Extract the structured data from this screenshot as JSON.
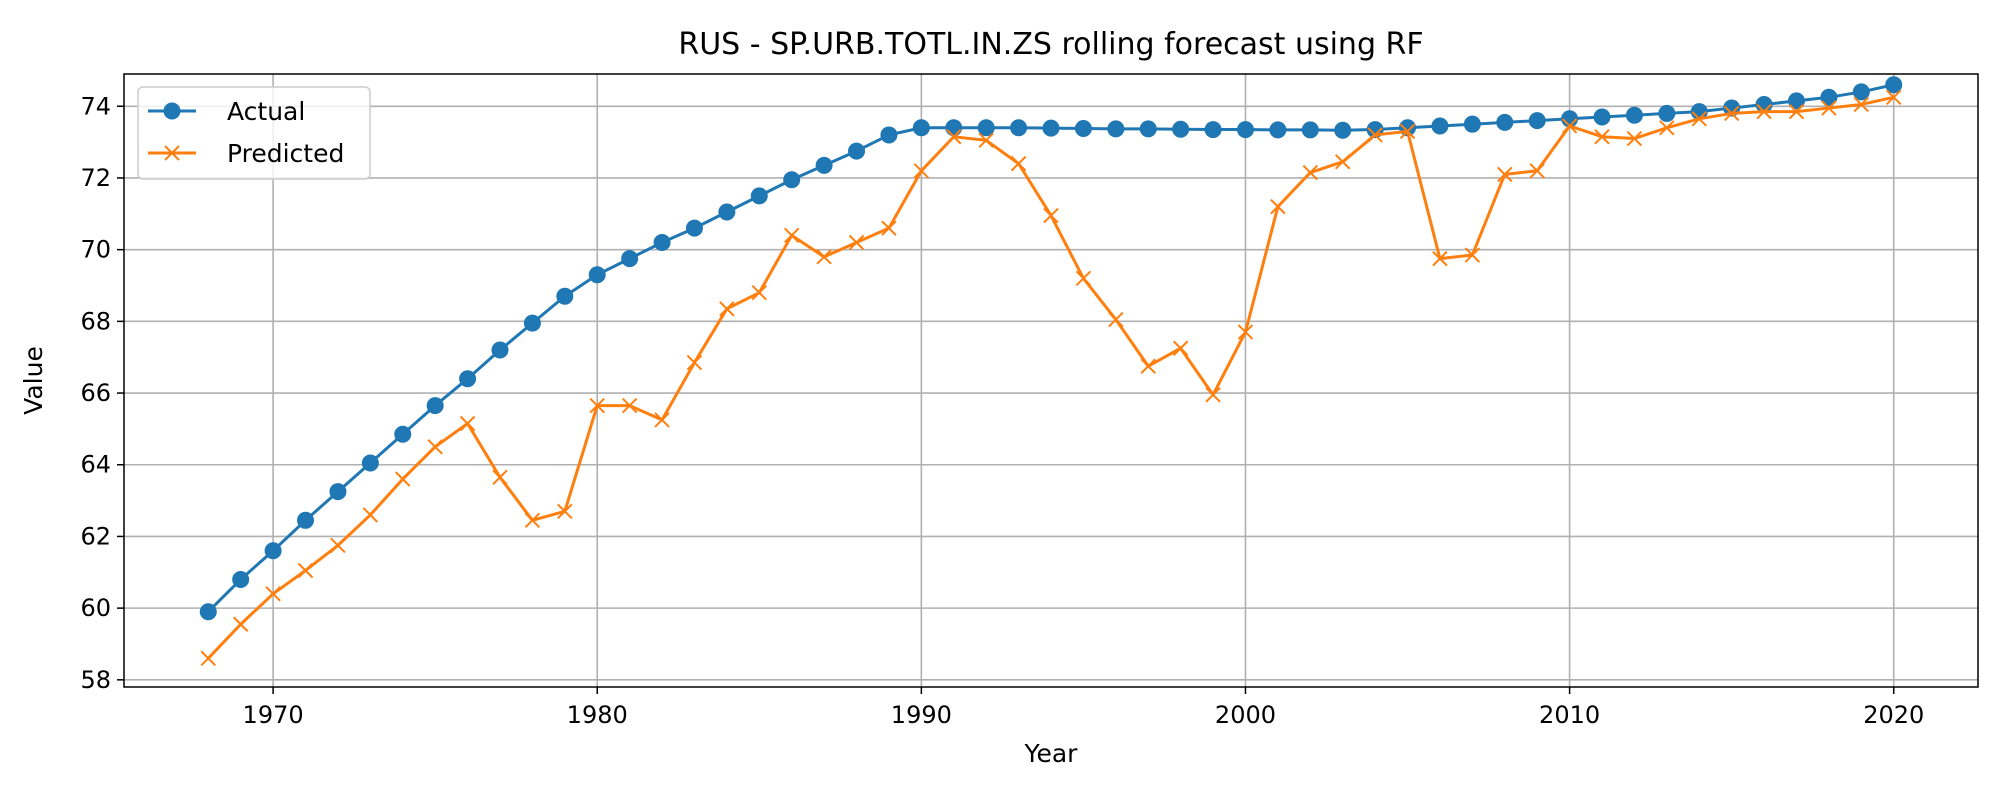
{
  "chart_data": {
    "type": "line",
    "title": "RUS - SP.URB.TOTL.IN.ZS rolling forecast using RF",
    "xlabel": "Year",
    "ylabel": "Value",
    "xlim": [
      1965.4,
      2022.6
    ],
    "ylim": [
      57.8,
      74.9
    ],
    "xticks": [
      1970,
      1980,
      1990,
      2000,
      2010,
      2020
    ],
    "yticks": [
      58,
      60,
      62,
      64,
      66,
      68,
      70,
      72,
      74
    ],
    "grid": true,
    "legend_position": "top-left",
    "x": [
      1968,
      1969,
      1970,
      1971,
      1972,
      1973,
      1974,
      1975,
      1976,
      1977,
      1978,
      1979,
      1980,
      1981,
      1982,
      1983,
      1984,
      1985,
      1986,
      1987,
      1988,
      1989,
      1990,
      1991,
      1992,
      1993,
      1994,
      1995,
      1996,
      1997,
      1998,
      1999,
      2000,
      2001,
      2002,
      2003,
      2004,
      2005,
      2006,
      2007,
      2008,
      2009,
      2010,
      2011,
      2012,
      2013,
      2014,
      2015,
      2016,
      2017,
      2018,
      2019,
      2020
    ],
    "series": [
      {
        "name": "Actual",
        "color": "#1f77b4",
        "marker": "circle",
        "values": [
          59.9,
          60.8,
          61.6,
          62.45,
          63.25,
          64.05,
          64.85,
          65.65,
          66.4,
          67.2,
          67.95,
          68.7,
          69.3,
          69.75,
          70.2,
          70.6,
          71.05,
          71.5,
          71.95,
          72.35,
          72.75,
          73.2,
          73.4,
          73.4,
          73.4,
          73.4,
          73.39,
          73.38,
          73.37,
          73.37,
          73.36,
          73.35,
          73.35,
          73.34,
          73.34,
          73.33,
          73.35,
          73.4,
          73.45,
          73.5,
          73.55,
          73.6,
          73.65,
          73.7,
          73.75,
          73.8,
          73.85,
          73.95,
          74.05,
          74.15,
          74.25,
          74.4,
          74.6
        ]
      },
      {
        "name": "Predicted",
        "color": "#ff7f0e",
        "marker": "x",
        "values": [
          58.6,
          59.55,
          60.4,
          61.05,
          61.75,
          62.6,
          63.6,
          64.5,
          65.15,
          63.65,
          62.45,
          62.7,
          65.65,
          65.65,
          65.25,
          66.85,
          68.35,
          68.8,
          70.4,
          69.8,
          70.2,
          70.6,
          72.2,
          73.15,
          73.05,
          72.4,
          70.95,
          69.2,
          68.05,
          66.75,
          67.25,
          65.95,
          67.7,
          71.2,
          72.15,
          72.45,
          73.2,
          73.3,
          69.75,
          69.85,
          72.1,
          72.2,
          73.45,
          73.15,
          73.1,
          73.4,
          73.65,
          73.8,
          73.85,
          73.85,
          73.95,
          74.05,
          74.25
        ]
      }
    ]
  }
}
